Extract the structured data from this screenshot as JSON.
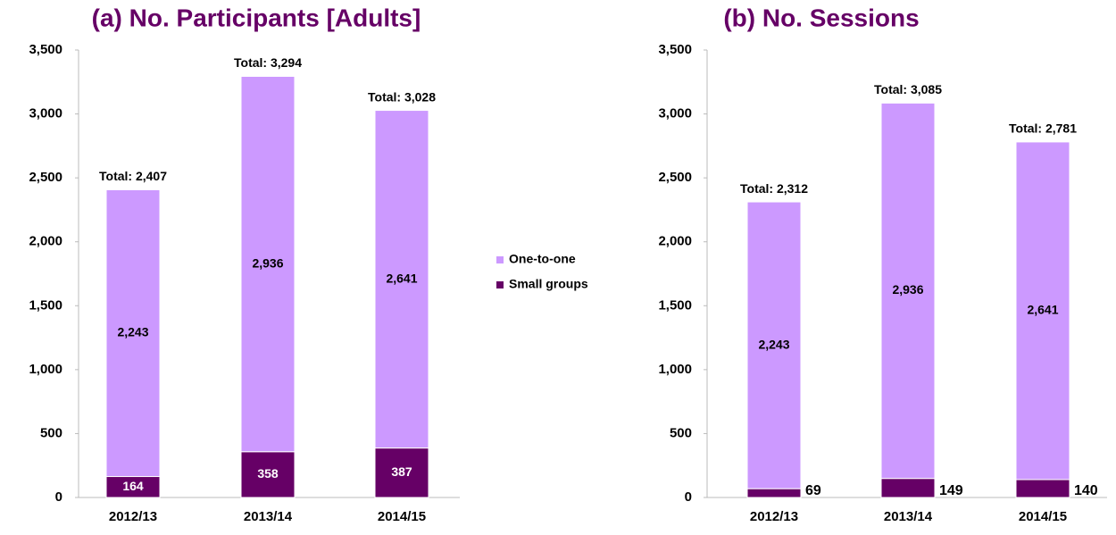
{
  "chart_data": [
    {
      "type": "stacked_bar",
      "title": "(a) No. Participants [Adults]",
      "categories": [
        "2012/13",
        "2013/14",
        "2014/15"
      ],
      "series": [
        {
          "name": "Small groups",
          "color": "#660066",
          "values": [
            164,
            358,
            387
          ],
          "value_labels": [
            "164",
            "358",
            "387"
          ]
        },
        {
          "name": "One-to-one",
          "color": "#cc99ff",
          "values": [
            2243,
            2936,
            2641
          ],
          "value_labels": [
            "2,243",
            "2,936",
            "2,641"
          ]
        }
      ],
      "totals": [
        2407,
        3294,
        3028
      ],
      "total_labels": [
        "Total: 2,407",
        "Total: 3,294",
        "Total: 3,028"
      ],
      "ylim": [
        0,
        3500
      ],
      "yticks": [
        0,
        500,
        {
          "value": 1000,
          "label": "1,000"
        },
        {
          "value": 1500,
          "label": "1,500"
        },
        {
          "value": 2000,
          "label": "2,000"
        },
        {
          "value": 2500,
          "label": "2,500"
        },
        {
          "value": 3000,
          "label": "3,000"
        },
        {
          "value": 3500,
          "label": "3,500"
        }
      ],
      "legend": "right"
    },
    {
      "type": "stacked_bar",
      "title": "(b) No. Sessions",
      "categories": [
        "2012/13",
        "2013/14",
        "2014/15"
      ],
      "series": [
        {
          "name": "Small groups",
          "color": "#660066",
          "values": [
            69,
            149,
            140
          ]
        },
        {
          "name": "One-to-one",
          "color": "#cc99ff",
          "values": [
            2243,
            2936,
            2641
          ],
          "value_labels": [
            "2,243",
            "2,936",
            "2,641"
          ]
        }
      ],
      "totals": [
        2312,
        3085,
        2781
      ],
      "total_labels": [
        "Total: 2,312",
        "Total: 3,085",
        "Total: 2,781"
      ],
      "ylim": [
        0,
        3500
      ],
      "yticks": [
        0,
        500,
        {
          "value": 1000,
          "label": "1,000"
        },
        {
          "value": 1500,
          "label": "1,500"
        },
        {
          "value": 2000,
          "label": "2,000"
        },
        {
          "value": 2500,
          "label": "2,500"
        },
        {
          "value": 3000,
          "label": "3,000"
        },
        {
          "value": 3500,
          "label": "3,500"
        }
      ]
    }
  ]
}
